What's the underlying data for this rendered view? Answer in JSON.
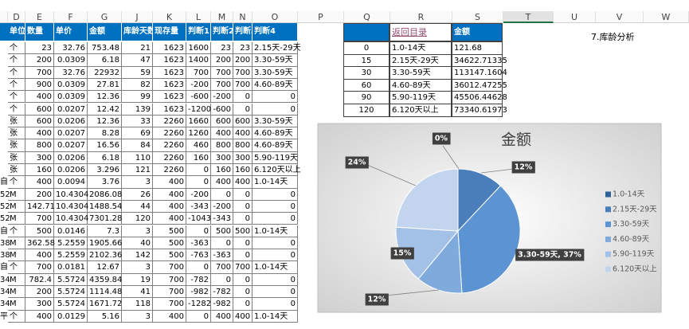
{
  "sheet": {
    "columns": [
      "D",
      "E",
      "F",
      "G",
      "J",
      "K",
      "L",
      "M",
      "N",
      "O",
      "P",
      "Q",
      "R",
      "S",
      "T",
      "U",
      "V",
      "W"
    ],
    "headers": [
      "单位",
      "数量",
      "单价",
      "金额",
      "库龄天数",
      "现存量",
      "判断1",
      "判断2",
      "判断3",
      "判断4"
    ],
    "rows": [
      {
        "cells": [
          "个",
          23,
          32.76,
          753.48,
          21,
          1623,
          1600,
          23,
          23,
          "2.15天-29天"
        ]
      },
      {
        "cells": [
          "个",
          200,
          0.0309,
          6.18,
          47,
          1623,
          1400,
          200,
          200,
          "3.30-59天"
        ]
      },
      {
        "cells": [
          "个",
          700,
          32.76,
          22932,
          59,
          1623,
          700,
          700,
          700,
          "3.30-59天"
        ]
      },
      {
        "cells": [
          "个",
          900,
          0.0309,
          27.81,
          82,
          1623,
          -200,
          700,
          700,
          "4.60-89天"
        ]
      },
      {
        "cells": [
          "个",
          400,
          0.0309,
          12.36,
          99,
          1623,
          -600,
          -200,
          0,
          0
        ]
      },
      {
        "cells": [
          "个",
          600,
          0.0207,
          12.42,
          139,
          1623,
          -1200,
          -600,
          0,
          0
        ]
      },
      {
        "cells": [
          "张",
          600,
          0.0206,
          12.36,
          33,
          2260,
          1660,
          600,
          600,
          "3.30-59天"
        ]
      },
      {
        "cells": [
          "张",
          400,
          0.0207,
          8.28,
          69,
          2260,
          1260,
          400,
          400,
          "4.60-89天"
        ]
      },
      {
        "cells": [
          "张",
          800,
          0.0207,
          16.56,
          84,
          2260,
          460,
          800,
          800,
          "4.60-89天"
        ]
      },
      {
        "cells": [
          "张",
          300,
          0.0206,
          6.18,
          110,
          2260,
          160,
          300,
          300,
          "5.90-119天"
        ]
      },
      {
        "cells": [
          "张",
          160,
          0.0206,
          3.296,
          121,
          2260,
          0,
          160,
          160,
          "6.120天以上"
        ]
      },
      {
        "c": "自",
        "cells": [
          "个",
          400,
          0.0094,
          3.76,
          3,
          400,
          0,
          400,
          400,
          "1.0-14天"
        ]
      },
      {
        "c": "52",
        "cells": [
          "M",
          200,
          10.4304,
          2086.08,
          26,
          400,
          -200,
          0,
          0,
          0
        ]
      },
      {
        "c": "52",
        "cells": [
          "M",
          142.71,
          10.4304,
          1488.54,
          44,
          400,
          -343,
          -200,
          0,
          0
        ]
      },
      {
        "c": "52",
        "cells": [
          "M",
          700,
          10.4304,
          7301.28,
          120,
          400,
          -1043,
          -343,
          0,
          0
        ]
      },
      {
        "c": "自",
        "cells": [
          "个",
          500,
          0.0146,
          7.3,
          3,
          500,
          0,
          500,
          500,
          "1.0-14天"
        ]
      },
      {
        "c": "38",
        "cells": [
          "M",
          362.58,
          5.2559,
          1905.66,
          40,
          500,
          -363,
          0,
          0,
          0
        ]
      },
      {
        "c": "38",
        "cells": [
          "M",
          400,
          5.2559,
          2102.36,
          142,
          500,
          -763,
          -363,
          0,
          0
        ]
      },
      {
        "c": "自",
        "cells": [
          "个",
          700,
          0.0181,
          12.67,
          3,
          700,
          0,
          700,
          700,
          "1.0-14天"
        ]
      },
      {
        "c": "34",
        "cells": [
          "M",
          782.4,
          5.5724,
          4359.84,
          19,
          700,
          -782,
          0,
          0,
          0
        ]
      },
      {
        "c": "34",
        "cells": [
          "M",
          200,
          5.5724,
          1114.48,
          41,
          700,
          -982,
          -782,
          0,
          0
        ]
      },
      {
        "c": "34",
        "cells": [
          "M",
          300,
          5.5724,
          1671.72,
          118,
          700,
          -1282,
          -982,
          0,
          0
        ]
      },
      {
        "c": "平",
        "cells": [
          "个",
          400,
          0.0129,
          5.16,
          3,
          400,
          0,
          400,
          400,
          "1.0-14天"
        ]
      }
    ],
    "summary": {
      "link": "返回目录",
      "header": "金额",
      "rows": [
        [
          0,
          "1.0-14天",
          121.68
        ],
        [
          15,
          "2.15天-29天",
          34622.71335
        ],
        [
          30,
          "3.30-59天",
          113147.1604
        ],
        [
          60,
          "4.60-89天",
          36012.47255
        ],
        [
          90,
          "5.90-119天",
          45506.44628
        ],
        [
          120,
          "6.120天以上",
          73340.61973
        ]
      ]
    },
    "note": "7.库龄分析"
  },
  "chart_data": {
    "type": "pie",
    "title": "金额",
    "categories": [
      "1.0-14天",
      "2.15天-29天",
      "3.30-59天",
      "4.60-89天",
      "5.90-119天",
      "6.120天以上"
    ],
    "values": [
      0,
      12,
      37,
      12,
      15,
      24
    ],
    "value_labels": [
      "0%",
      "12%",
      "3.30-59天, 37%",
      "12%",
      "15%",
      "24%"
    ],
    "colors": [
      "#2f5f98",
      "#4a7ebb",
      "#5b93d3",
      "#7faadc",
      "#a3c0e6",
      "#c3d5ee"
    ],
    "legend": "right"
  }
}
